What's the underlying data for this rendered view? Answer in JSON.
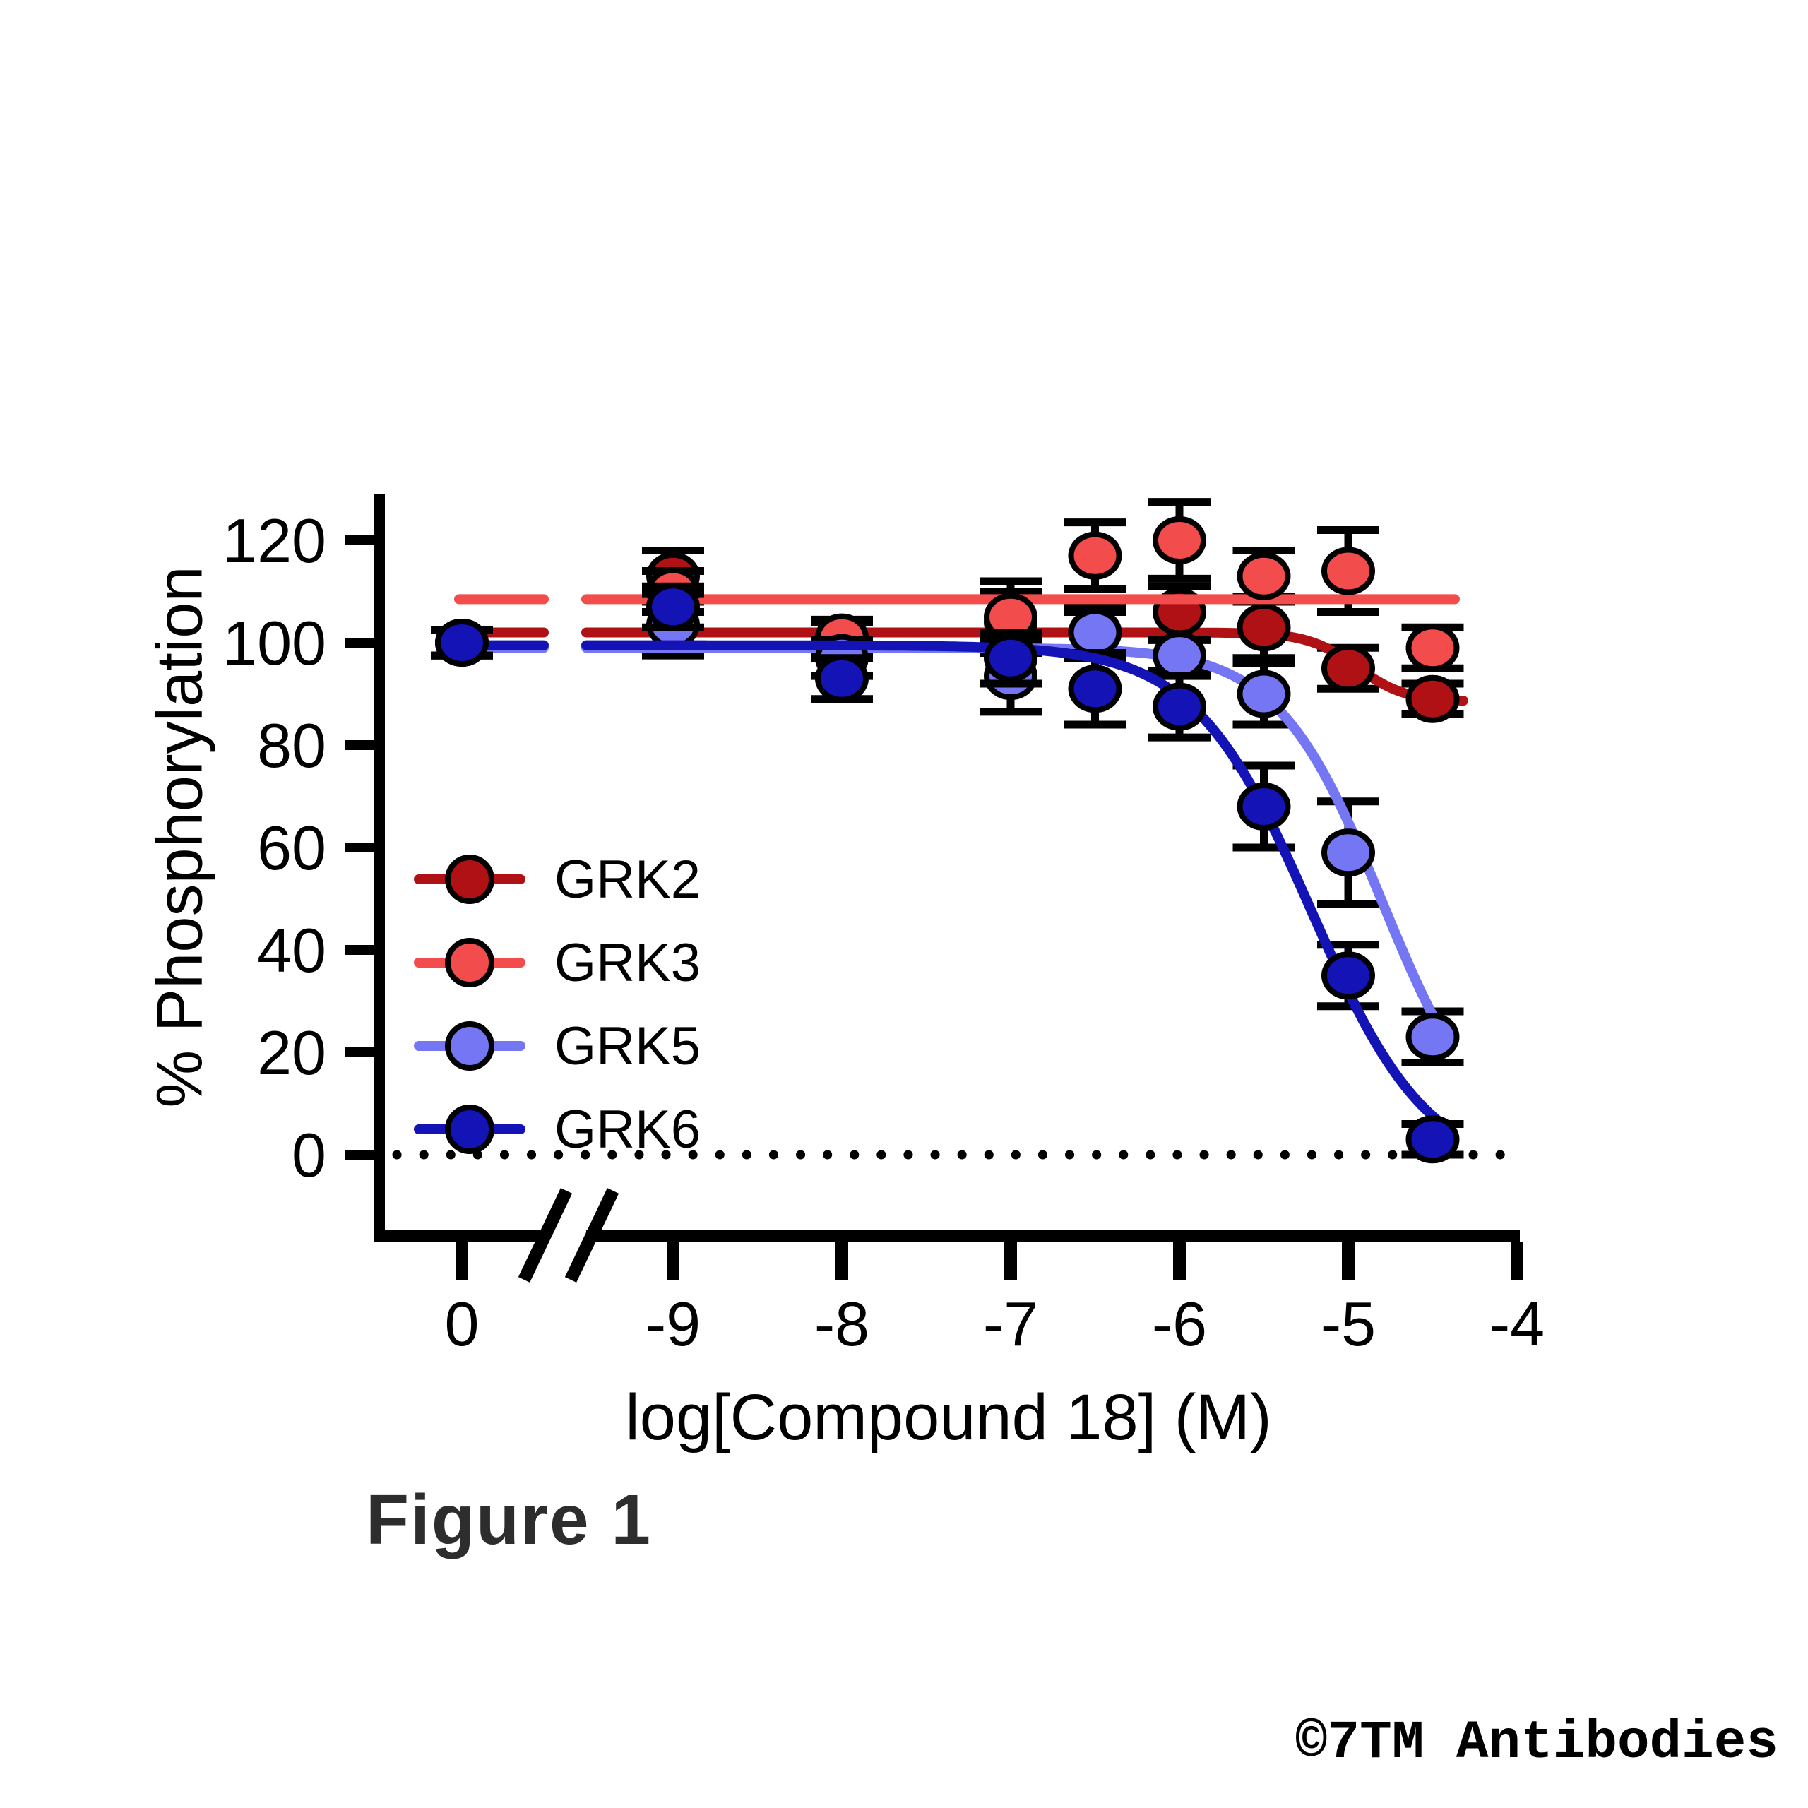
{
  "figure": {
    "caption": "Figure 1",
    "watermark": "©7TM Antibodies"
  },
  "chart_data": {
    "type": "scatter",
    "title": "",
    "xlabel": "log[Compound 18] (M)",
    "ylabel": "% Phosphorylation",
    "x_axis": {
      "tick_labels": [
        "0",
        "-9",
        "-8",
        "-7",
        "-6",
        "-5",
        "-4"
      ],
      "tick_values": [
        "control",
        -9,
        -8,
        -7,
        -6,
        -5,
        -4
      ],
      "axis_break_between": [
        "0",
        "-9"
      ],
      "range_log": [
        -9,
        -4
      ]
    },
    "y_axis": {
      "ticks": [
        0,
        20,
        40,
        60,
        80,
        100,
        120
      ],
      "ylim": [
        0,
        129
      ],
      "zero_baseline_dotted": true
    },
    "legend_position": "inside-left-middle",
    "grid": false,
    "series": [
      {
        "name": "GRK2",
        "color": "#B01114",
        "marker": "circle",
        "points": [
          {
            "x": "control",
            "y": 100,
            "err": 2.5
          },
          {
            "x": -9,
            "y": 113,
            "err": 5
          },
          {
            "x": -8,
            "y": 101,
            "err": 3
          },
          {
            "x": -7,
            "y": 104,
            "err": 6
          },
          {
            "x": -6.5,
            "y": 102,
            "err": 5
          },
          {
            "x": -6,
            "y": 106,
            "err": 5
          },
          {
            "x": -5.5,
            "y": 103,
            "err": 6
          },
          {
            "x": -5,
            "y": 95,
            "err": 4
          },
          {
            "x": -4.5,
            "y": 89,
            "err": 3
          }
        ],
        "fit": {
          "type": "logistic",
          "top": 102,
          "bottom": 88.5,
          "logIC50": -4.95,
          "hill": 3,
          "x_end": -4.3
        }
      },
      {
        "name": "GRK3",
        "color": "#F24C4C",
        "marker": "circle",
        "points": [
          {
            "x": "control",
            "y": 100,
            "err": 2.5
          },
          {
            "x": -9,
            "y": 110,
            "err": 4
          },
          {
            "x": -8,
            "y": 101,
            "err": 3.5
          },
          {
            "x": -7,
            "y": 105,
            "err": 7
          },
          {
            "x": -6.5,
            "y": 117,
            "err": 6.5
          },
          {
            "x": -6,
            "y": 120,
            "err": 7.5
          },
          {
            "x": -5.5,
            "y": 113,
            "err": 5
          },
          {
            "x": -5,
            "y": 114,
            "err": 8
          },
          {
            "x": -4.5,
            "y": 99,
            "err": 4
          }
        ],
        "fit": {
          "type": "flat",
          "y": 108.5,
          "x_end": -4.35
        }
      },
      {
        "name": "GRK5",
        "color": "#7476F4",
        "marker": "circle",
        "points": [
          {
            "x": "control",
            "y": 100,
            "err": 2.5
          },
          {
            "x": -9,
            "y": 103.5,
            "err": 6
          },
          {
            "x": -8,
            "y": 97,
            "err": 3.5
          },
          {
            "x": -7,
            "y": 93.5,
            "err": 7
          },
          {
            "x": -6.5,
            "y": 102,
            "err": 4
          },
          {
            "x": -6,
            "y": 97.5,
            "err": 3
          },
          {
            "x": -5.5,
            "y": 90,
            "err": 6
          },
          {
            "x": -5,
            "y": 59,
            "err": 10
          },
          {
            "x": -4.5,
            "y": 23,
            "err": 5
          }
        ],
        "fit": {
          "type": "logistic",
          "top": 99,
          "bottom": 0,
          "logIC50": -4.8,
          "hill": 1.4,
          "x_end": -4.42
        }
      },
      {
        "name": "GRK6",
        "color": "#1413B6",
        "marker": "circle",
        "points": [
          {
            "x": "control",
            "y": 100,
            "err": 2.5
          },
          {
            "x": -9,
            "y": 107,
            "err": 4
          },
          {
            "x": -8,
            "y": 93,
            "err": 4
          },
          {
            "x": -7,
            "y": 97,
            "err": 5
          },
          {
            "x": -6.5,
            "y": 91,
            "err": 7
          },
          {
            "x": -6,
            "y": 87.5,
            "err": 6
          },
          {
            "x": -5.5,
            "y": 68,
            "err": 8
          },
          {
            "x": -5,
            "y": 35,
            "err": 6
          },
          {
            "x": -4.5,
            "y": 3,
            "err": 3
          }
        ],
        "fit": {
          "type": "logistic",
          "top": 99.5,
          "bottom": -4,
          "logIC50": -5.22,
          "hill": 1.25,
          "x_end": -4.42
        }
      }
    ]
  }
}
